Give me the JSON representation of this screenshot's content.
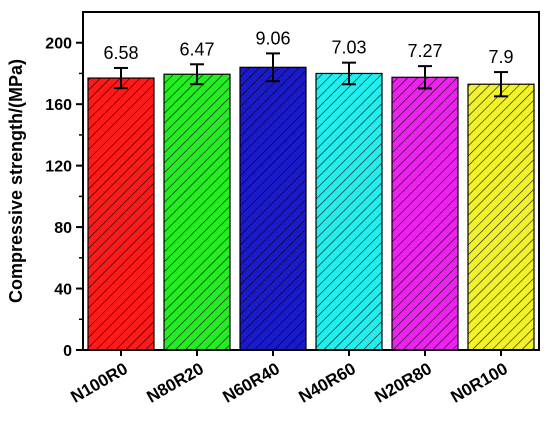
{
  "chart_data": {
    "type": "bar",
    "title": "",
    "xlabel": "",
    "ylabel": "Compressive strength/(MPa)",
    "ylim": [
      0,
      220
    ],
    "yticks": [
      "0",
      "40",
      "80",
      "120",
      "160",
      "200"
    ],
    "grid": false,
    "legend": "none",
    "categories": [
      "N100R0",
      "N80R20",
      "N60R40",
      "N40R60",
      "N20R80",
      "N0R100"
    ],
    "values": [
      177,
      179.5,
      184,
      180,
      177.5,
      173
    ],
    "errors": [
      6.58,
      6.47,
      9.06,
      7.03,
      7.27,
      7.9
    ],
    "data_labels": [
      "6.58",
      "6.47",
      "9.06",
      "7.03",
      "7.27",
      "7.9"
    ],
    "colors": [
      "#ff1a1a",
      "#22ee22",
      "#1a1acc",
      "#22eeee",
      "#ee22ee",
      "#f2f22a"
    ],
    "fill_pattern": "diagonal-hatch"
  }
}
